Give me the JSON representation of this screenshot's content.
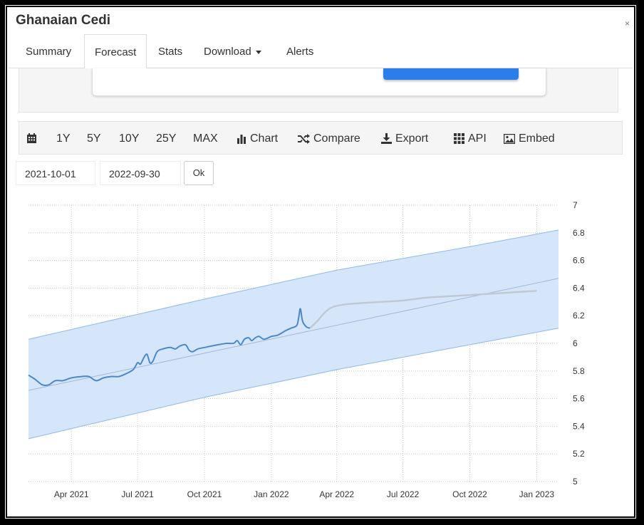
{
  "header": {
    "title": "Ghanaian Cedi"
  },
  "tabs": [
    {
      "label": "Summary",
      "active": false
    },
    {
      "label": "Forecast",
      "active": true
    },
    {
      "label": "Stats",
      "active": false
    },
    {
      "label": "Download",
      "active": false,
      "dropdown": true
    },
    {
      "label": "Alerts",
      "active": false
    }
  ],
  "toolbar": {
    "range_buttons": [
      "1Y",
      "5Y",
      "10Y",
      "25Y",
      "MAX"
    ],
    "chart_label": "Chart",
    "compare_label": "Compare",
    "export_label": "Export",
    "api_label": "API",
    "embed_label": "Embed",
    "icons": [
      "calendar-icon",
      "bar-chart-icon",
      "shuffle-icon",
      "download-icon",
      "grid-icon",
      "image-icon"
    ]
  },
  "date_range": {
    "start": "2021-10-01",
    "end": "2022-09-30",
    "ok_label": "Ok"
  },
  "colors": {
    "series": "#4a89c8",
    "forecast": "#bfc9d3",
    "band": "#d6e6fa",
    "band_edge": "#8fb7ea",
    "accent_button": "#2b7de9"
  },
  "chart_data": {
    "type": "line",
    "title": "",
    "xlabel": "",
    "ylabel": "",
    "x_range": [
      "2021-02-01",
      "2023-01-31"
    ],
    "ylim": [
      5,
      7
    ],
    "y_ticks": [
      5,
      5.2,
      5.4,
      5.6,
      5.8,
      6,
      6.2,
      6.4,
      6.6,
      6.8,
      7
    ],
    "y_axis_position": "right",
    "x_ticks": [
      {
        "label": "Apr 2021",
        "date": "2021-04-01"
      },
      {
        "label": "Jul 2021",
        "date": "2021-07-01"
      },
      {
        "label": "Oct 2021",
        "date": "2021-10-01"
      },
      {
        "label": "Jan 2022",
        "date": "2022-01-01"
      },
      {
        "label": "Apr 2022",
        "date": "2022-04-01"
      },
      {
        "label": "Jul 2022",
        "date": "2022-07-01"
      },
      {
        "label": "Oct 2022",
        "date": "2022-10-01"
      },
      {
        "label": "Jan 2023",
        "date": "2023-01-01"
      }
    ],
    "grid": true,
    "series": [
      {
        "role": "historical",
        "points": [
          [
            "2021-02-01",
            5.77
          ],
          [
            "2021-02-10",
            5.74
          ],
          [
            "2021-02-20",
            5.7
          ],
          [
            "2021-03-01",
            5.7
          ],
          [
            "2021-03-10",
            5.73
          ],
          [
            "2021-03-20",
            5.73
          ],
          [
            "2021-04-01",
            5.75
          ],
          [
            "2021-04-15",
            5.76
          ],
          [
            "2021-04-25",
            5.76
          ],
          [
            "2021-05-05",
            5.73
          ],
          [
            "2021-05-15",
            5.75
          ],
          [
            "2021-05-25",
            5.76
          ],
          [
            "2021-06-05",
            5.76
          ],
          [
            "2021-06-15",
            5.78
          ],
          [
            "2021-06-25",
            5.81
          ],
          [
            "2021-07-01",
            5.86
          ],
          [
            "2021-07-05",
            5.85
          ],
          [
            "2021-07-10",
            5.9
          ],
          [
            "2021-07-14",
            5.92
          ],
          [
            "2021-07-18",
            5.86
          ],
          [
            "2021-07-22",
            5.87
          ],
          [
            "2021-07-28",
            5.94
          ],
          [
            "2021-08-05",
            5.96
          ],
          [
            "2021-08-15",
            5.97
          ],
          [
            "2021-08-22",
            5.96
          ],
          [
            "2021-08-28",
            5.98
          ],
          [
            "2021-09-05",
            5.99
          ],
          [
            "2021-09-10",
            5.95
          ],
          [
            "2021-09-15",
            5.94
          ],
          [
            "2021-09-22",
            5.96
          ],
          [
            "2021-10-01",
            5.97
          ],
          [
            "2021-10-10",
            5.98
          ],
          [
            "2021-10-20",
            5.99
          ],
          [
            "2021-11-01",
            6.0
          ],
          [
            "2021-11-10",
            6.0
          ],
          [
            "2021-11-15",
            6.02
          ],
          [
            "2021-11-20",
            5.99
          ],
          [
            "2021-11-25",
            6.03
          ],
          [
            "2021-12-01",
            6.04
          ],
          [
            "2021-12-05",
            6.02
          ],
          [
            "2021-12-10",
            6.04
          ],
          [
            "2021-12-15",
            6.05
          ],
          [
            "2021-12-22",
            6.03
          ],
          [
            "2022-01-01",
            6.05
          ],
          [
            "2022-01-10",
            6.06
          ],
          [
            "2022-01-20",
            6.09
          ],
          [
            "2022-01-28",
            6.11
          ],
          [
            "2022-02-05",
            6.13
          ],
          [
            "2022-02-08",
            6.2
          ],
          [
            "2022-02-10",
            6.25
          ],
          [
            "2022-02-13",
            6.16
          ],
          [
            "2022-02-18",
            6.12
          ],
          [
            "2022-02-23",
            6.11
          ]
        ]
      },
      {
        "role": "forecast",
        "points": [
          [
            "2022-02-23",
            6.11
          ],
          [
            "2022-03-05",
            6.16
          ],
          [
            "2022-03-15",
            6.22
          ],
          [
            "2022-03-25",
            6.26
          ],
          [
            "2022-04-10",
            6.28
          ],
          [
            "2022-05-01",
            6.29
          ],
          [
            "2022-06-01",
            6.3
          ],
          [
            "2022-07-01",
            6.31
          ],
          [
            "2022-08-01",
            6.33
          ],
          [
            "2022-09-01",
            6.34
          ],
          [
            "2022-10-01",
            6.35
          ],
          [
            "2022-11-01",
            6.36
          ],
          [
            "2022-12-01",
            6.37
          ],
          [
            "2023-01-01",
            6.38
          ]
        ]
      },
      {
        "role": "trend",
        "points": [
          [
            "2021-02-01",
            5.66
          ],
          [
            "2023-01-31",
            6.47
          ]
        ]
      },
      {
        "role": "band-upper",
        "points": [
          [
            "2021-02-01",
            6.03
          ],
          [
            "2021-10-01",
            6.32
          ],
          [
            "2022-04-01",
            6.53
          ],
          [
            "2022-10-01",
            6.7
          ],
          [
            "2023-01-31",
            6.82
          ]
        ]
      },
      {
        "role": "band-lower",
        "points": [
          [
            "2021-02-01",
            5.31
          ],
          [
            "2021-10-01",
            5.61
          ],
          [
            "2022-04-01",
            5.81
          ],
          [
            "2022-10-01",
            5.99
          ],
          [
            "2023-01-31",
            6.11
          ]
        ]
      }
    ]
  }
}
